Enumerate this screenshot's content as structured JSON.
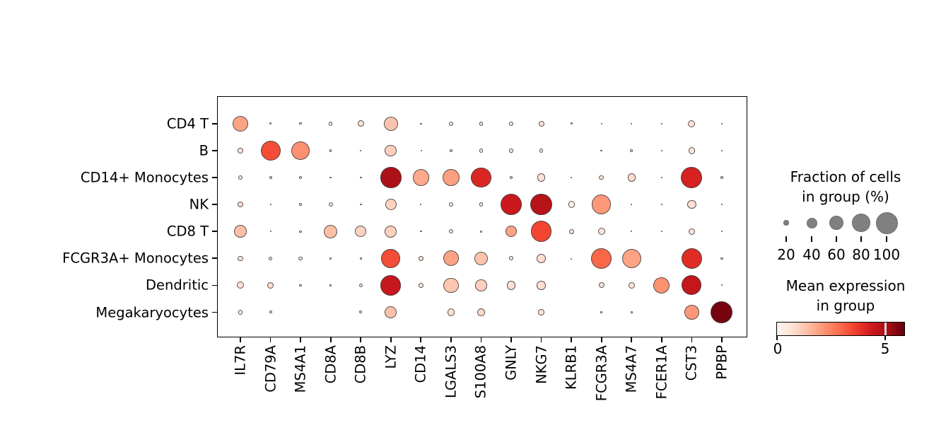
{
  "chart_data": {
    "type": "dotplot",
    "title": "",
    "genes": [
      "IL7R",
      "CD79A",
      "MS4A1",
      "CD8A",
      "CD8B",
      "LYZ",
      "CD14",
      "LGALS3",
      "S100A8",
      "GNLY",
      "NKG7",
      "KLRB1",
      "FCGR3A",
      "MS4A7",
      "FCER1A",
      "CST3",
      "PPBP"
    ],
    "cell_types": [
      "CD4 T",
      "B",
      "CD14+ Monocytes",
      "NK",
      "CD8 T",
      "FCGR3A+ Monocytes",
      "Dendritic",
      "Megakaryocytes"
    ],
    "fraction_of_cells_pct": [
      [
        65,
        9,
        9,
        15,
        24,
        57,
        7,
        16,
        16,
        16,
        22,
        9,
        5,
        5,
        4,
        27,
        4
      ],
      [
        20,
        89,
        81,
        9,
        5,
        46,
        4,
        11,
        15,
        15,
        15,
        0,
        7,
        11,
        4,
        25,
        4
      ],
      [
        18,
        11,
        11,
        7,
        7,
        94,
        70,
        73,
        91,
        13,
        31,
        5,
        18,
        30,
        5,
        96,
        13
      ],
      [
        22,
        5,
        13,
        16,
        7,
        43,
        5,
        16,
        15,
        97,
        99,
        25,
        86,
        5,
        4,
        33,
        4
      ],
      [
        50,
        5,
        9,
        55,
        43,
        48,
        7,
        18,
        9,
        43,
        94,
        20,
        27,
        5,
        5,
        25,
        4
      ],
      [
        20,
        15,
        15,
        9,
        7,
        84,
        20,
        65,
        55,
        16,
        34,
        4,
        91,
        86,
        0,
        94,
        9
      ],
      [
        27,
        25,
        9,
        7,
        15,
        91,
        18,
        62,
        45,
        33,
        33,
        0,
        22,
        25,
        70,
        89,
        5
      ],
      [
        18,
        11,
        0,
        0,
        11,
        46,
        0,
        29,
        29,
        0,
        23,
        0,
        7,
        7,
        0,
        60,
        100
      ]
    ],
    "mean_expression": [
      [
        1.9,
        0.5,
        0.5,
        0.6,
        0.7,
        1.3,
        0.4,
        0.6,
        0.55,
        0.6,
        0.55,
        0.4,
        0.4,
        0.4,
        0.3,
        0.65,
        0.3
      ],
      [
        0.6,
        3.4,
        2.25,
        0.5,
        0.4,
        1.1,
        0.3,
        0.55,
        0.5,
        0.55,
        0.55,
        0,
        0.4,
        0.5,
        0.3,
        0.55,
        0.3
      ],
      [
        0.6,
        0.5,
        0.5,
        0.4,
        0.4,
        5.0,
        1.8,
        1.95,
        4.1,
        0.5,
        0.65,
        0.4,
        0.7,
        0.8,
        0.4,
        4.2,
        0.6
      ],
      [
        0.7,
        0.4,
        0.5,
        0.6,
        0.4,
        1.0,
        0.4,
        0.55,
        0.5,
        4.4,
        4.8,
        0.3,
        2.1,
        0.4,
        0.3,
        0.7,
        0.3
      ],
      [
        1.4,
        0.4,
        0.5,
        1.4,
        1.0,
        1.05,
        0.4,
        0.6,
        0.5,
        1.9,
        3.5,
        0.6,
        0.6,
        0.4,
        0.4,
        0.6,
        0.3
      ],
      [
        0.6,
        0.55,
        0.55,
        0.5,
        0.4,
        3.4,
        0.7,
        1.9,
        1.3,
        0.6,
        0.8,
        0.3,
        3.0,
        1.9,
        0,
        4.0,
        0.5
      ],
      [
        0.7,
        0.8,
        0.5,
        0.4,
        0.55,
        4.5,
        0.7,
        1.25,
        1.05,
        0.7,
        0.75,
        0,
        0.6,
        0.65,
        2.2,
        4.55,
        0.4
      ],
      [
        0.6,
        0.5,
        0,
        0,
        0.5,
        1.35,
        0,
        0.8,
        0.9,
        0,
        0.6,
        0,
        0.4,
        0.4,
        0,
        2.1,
        5.7
      ]
    ],
    "size_legend": {
      "title_line1": "Fraction of cells",
      "title_line2": "in group (%)",
      "values": [
        20,
        40,
        60,
        80,
        100
      ],
      "labels": [
        "20",
        "40",
        "60",
        "80",
        "100"
      ]
    },
    "color_legend": {
      "title_line1": "Mean expression",
      "title_line2": "in group",
      "tick_labels": [
        "0",
        "5"
      ],
      "vmin": 0,
      "vmax": 5.88,
      "tick5_position_fraction": 0.85,
      "colormap": "Reds"
    },
    "colors": {
      "reds_stops": [
        "#fff5f0",
        "#fee0d2",
        "#fcbba1",
        "#fc9272",
        "#fb6a4a",
        "#ef3b2c",
        "#cb181d",
        "#a50f15",
        "#67000d"
      ],
      "legend_dot_gray": "#808080",
      "dot_edge": "#3c3c3c",
      "colorbar_tick5_mark": "#d9d9d9"
    },
    "axes": {
      "grid": false,
      "x_label_rotation_deg": 90,
      "legend_position": "right"
    }
  }
}
